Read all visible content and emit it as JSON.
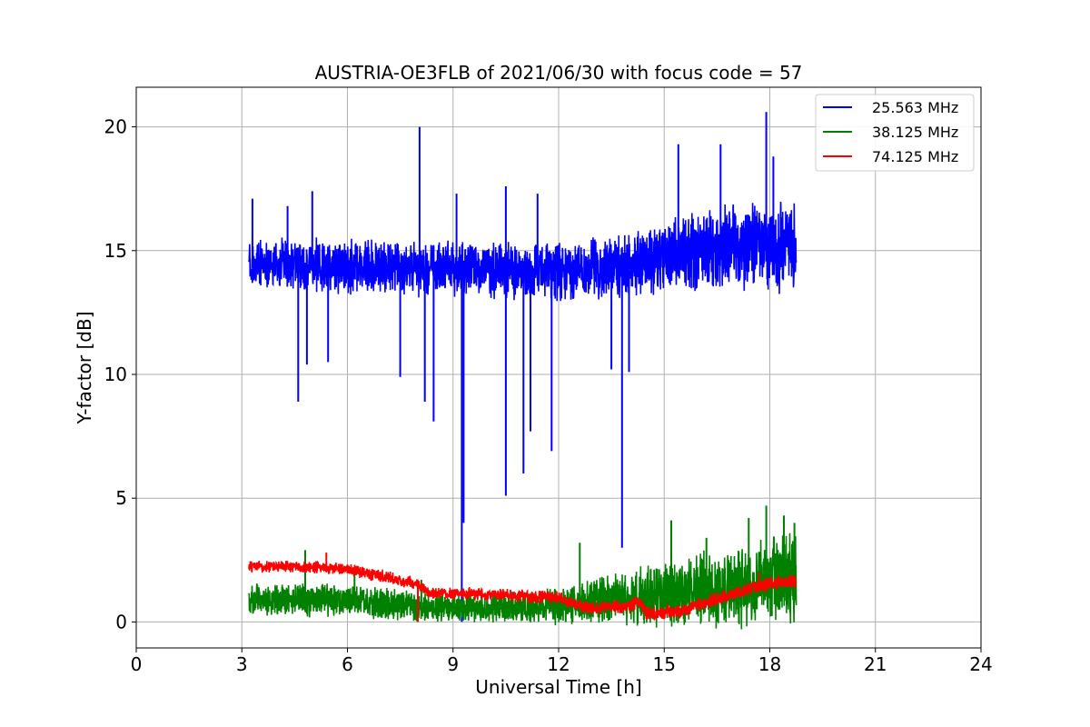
{
  "chart_data": {
    "type": "line",
    "title": "AUSTRIA-OE3FLB of 2021/06/30 with focus code = 57",
    "xlabel": "Universal Time [h]",
    "ylabel": "Y-factor [dB]",
    "xlim": [
      0,
      24
    ],
    "ylim": [
      -1.05,
      21.6
    ],
    "xticks": [
      0,
      3,
      6,
      9,
      12,
      15,
      18,
      21,
      24
    ],
    "yticks": [
      0,
      5,
      10,
      15,
      20
    ],
    "grid": true,
    "legend_position": "top-right",
    "series": [
      {
        "name": "25.563 MHz",
        "color": "#0000ff",
        "x_range": [
          3.2,
          18.75
        ],
        "baseline": [
          [
            3.2,
            14.3
          ],
          [
            6,
            14.2
          ],
          [
            9,
            14.1
          ],
          [
            12,
            14.0
          ],
          [
            14,
            14.2
          ],
          [
            16,
            14.8
          ],
          [
            18,
            15.0
          ],
          [
            18.75,
            14.8
          ]
        ],
        "noise_band": [
          [
            3.2,
            1.3
          ],
          [
            12,
            1.4
          ],
          [
            15,
            1.8
          ],
          [
            18.75,
            2.3
          ]
        ],
        "peaks": [
          [
            3.3,
            17.1
          ],
          [
            4.3,
            16.8
          ],
          [
            5.0,
            17.4
          ],
          [
            8.05,
            20.0
          ],
          [
            9.1,
            17.3
          ],
          [
            10.5,
            17.6
          ],
          [
            11.4,
            17.3
          ],
          [
            15.4,
            19.3
          ],
          [
            16.6,
            19.3
          ],
          [
            17.9,
            20.6
          ],
          [
            18.1,
            18.8
          ]
        ],
        "dips": [
          [
            4.6,
            8.9
          ],
          [
            4.85,
            10.4
          ],
          [
            5.45,
            10.5
          ],
          [
            7.5,
            9.9
          ],
          [
            8.2,
            8.9
          ],
          [
            8.45,
            8.1
          ],
          [
            9.25,
            0.0
          ],
          [
            9.3,
            4.0
          ],
          [
            10.5,
            5.1
          ],
          [
            11.0,
            6.0
          ],
          [
            11.2,
            7.7
          ],
          [
            11.8,
            6.9
          ],
          [
            13.5,
            10.2
          ],
          [
            13.8,
            3.0
          ],
          [
            14.0,
            10.1
          ]
        ]
      },
      {
        "name": "38.125 MHz",
        "color": "#008000",
        "x_range": [
          3.2,
          18.75
        ],
        "baseline": [
          [
            3.2,
            0.8
          ],
          [
            6,
            0.8
          ],
          [
            8,
            0.5
          ],
          [
            10,
            0.5
          ],
          [
            12,
            0.5
          ],
          [
            13,
            0.7
          ],
          [
            15,
            0.9
          ],
          [
            17,
            1.2
          ],
          [
            18.75,
            1.5
          ]
        ],
        "noise_band": [
          [
            3.2,
            0.9
          ],
          [
            9,
            0.7
          ],
          [
            12,
            0.9
          ],
          [
            15,
            1.6
          ],
          [
            18.75,
            2.3
          ]
        ],
        "peaks": [
          [
            4.8,
            2.9
          ],
          [
            6.2,
            2.2
          ],
          [
            8.1,
            1.7
          ],
          [
            12.6,
            3.2
          ],
          [
            15.2,
            4.1
          ],
          [
            16.2,
            3.4
          ],
          [
            17.4,
            4.2
          ],
          [
            17.9,
            4.7
          ],
          [
            18.4,
            4.3
          ],
          [
            18.7,
            4.0
          ]
        ],
        "dips": [
          [
            8.0,
            0.0
          ],
          [
            12.2,
            0.0
          ]
        ]
      },
      {
        "name": "74.125 MHz",
        "color": "#ff0000",
        "x_range": [
          3.2,
          18.75
        ],
        "baseline": [
          [
            3.2,
            2.2
          ],
          [
            5.0,
            2.2
          ],
          [
            6.0,
            2.1
          ],
          [
            7.0,
            1.8
          ],
          [
            8.0,
            1.5
          ],
          [
            8.3,
            1.1
          ],
          [
            10.0,
            1.1
          ],
          [
            11.0,
            1.0
          ],
          [
            12.0,
            0.95
          ],
          [
            12.5,
            0.65
          ],
          [
            13.0,
            0.5
          ],
          [
            14.0,
            0.6
          ],
          [
            14.3,
            0.8
          ],
          [
            14.5,
            0.3
          ],
          [
            15.5,
            0.4
          ],
          [
            16.5,
            0.9
          ],
          [
            17.5,
            1.3
          ],
          [
            18.0,
            1.5
          ],
          [
            18.75,
            1.6
          ]
        ],
        "noise_band": [
          [
            3.2,
            0.3
          ],
          [
            18.75,
            0.35
          ]
        ],
        "peaks": [
          [
            5.4,
            2.8
          ],
          [
            17.7,
            2.0
          ]
        ],
        "dips": [
          [
            8.0,
            0.0
          ],
          [
            14.5,
            0.1
          ]
        ]
      }
    ]
  }
}
